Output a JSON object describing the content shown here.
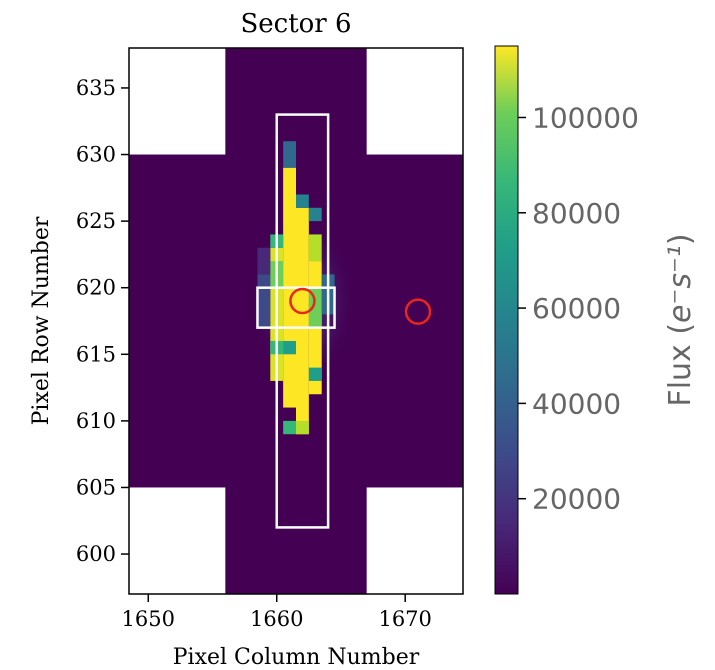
{
  "chart_data": {
    "type": "heatmap",
    "title": "Sector 6",
    "xlabel": "Pixel Column Number",
    "ylabel": "Pixel Row Number",
    "xlim": [
      1648.5,
      1674.5
    ],
    "ylim": [
      597,
      638
    ],
    "xticks": [
      1650,
      1660,
      1670
    ],
    "yticks": [
      600,
      605,
      610,
      615,
      620,
      625,
      630,
      635
    ],
    "colorbar": {
      "label_base": "Flux (",
      "label_sup": "e⁻s⁻¹",
      "label_end": ")",
      "range": [
        0,
        115000
      ],
      "ticks": [
        20000,
        40000,
        60000,
        80000,
        100000
      ],
      "colormap": "viridis"
    },
    "colors": {
      "background": "#440154",
      "aperture": "#ffffff",
      "marker": "#e8261c"
    },
    "image_region": {
      "wide_rows": [
        605,
        630
      ],
      "wide_cols": [
        1648.5,
        1674.5
      ],
      "narrow_cols": [
        1656,
        1667
      ],
      "rows": [
        597,
        638
      ]
    },
    "flux_cells": [
      {
        "col": 1661,
        "rows": [
          [
            627,
            631,
            20000
          ]
        ]
      },
      {
        "col": 1662,
        "rows": [
          [
            611,
            630,
            115000
          ]
        ]
      },
      {
        "col": 1663,
        "rows": [
          [
            609,
            626,
            110000
          ]
        ]
      },
      {
        "col": 1664,
        "rows": [
          [
            613,
            625,
            90000
          ]
        ]
      }
    ],
    "target_circles": [
      {
        "col": 1662.0,
        "row": 619.0
      },
      {
        "col": 1671.0,
        "row": 618.2
      }
    ],
    "large_aperture": {
      "cols": [
        1660,
        1664
      ],
      "rows": [
        602,
        633
      ]
    },
    "small_aperture": {
      "cols": [
        1658.5,
        1664.5
      ],
      "rows": [
        617,
        620
      ]
    }
  }
}
